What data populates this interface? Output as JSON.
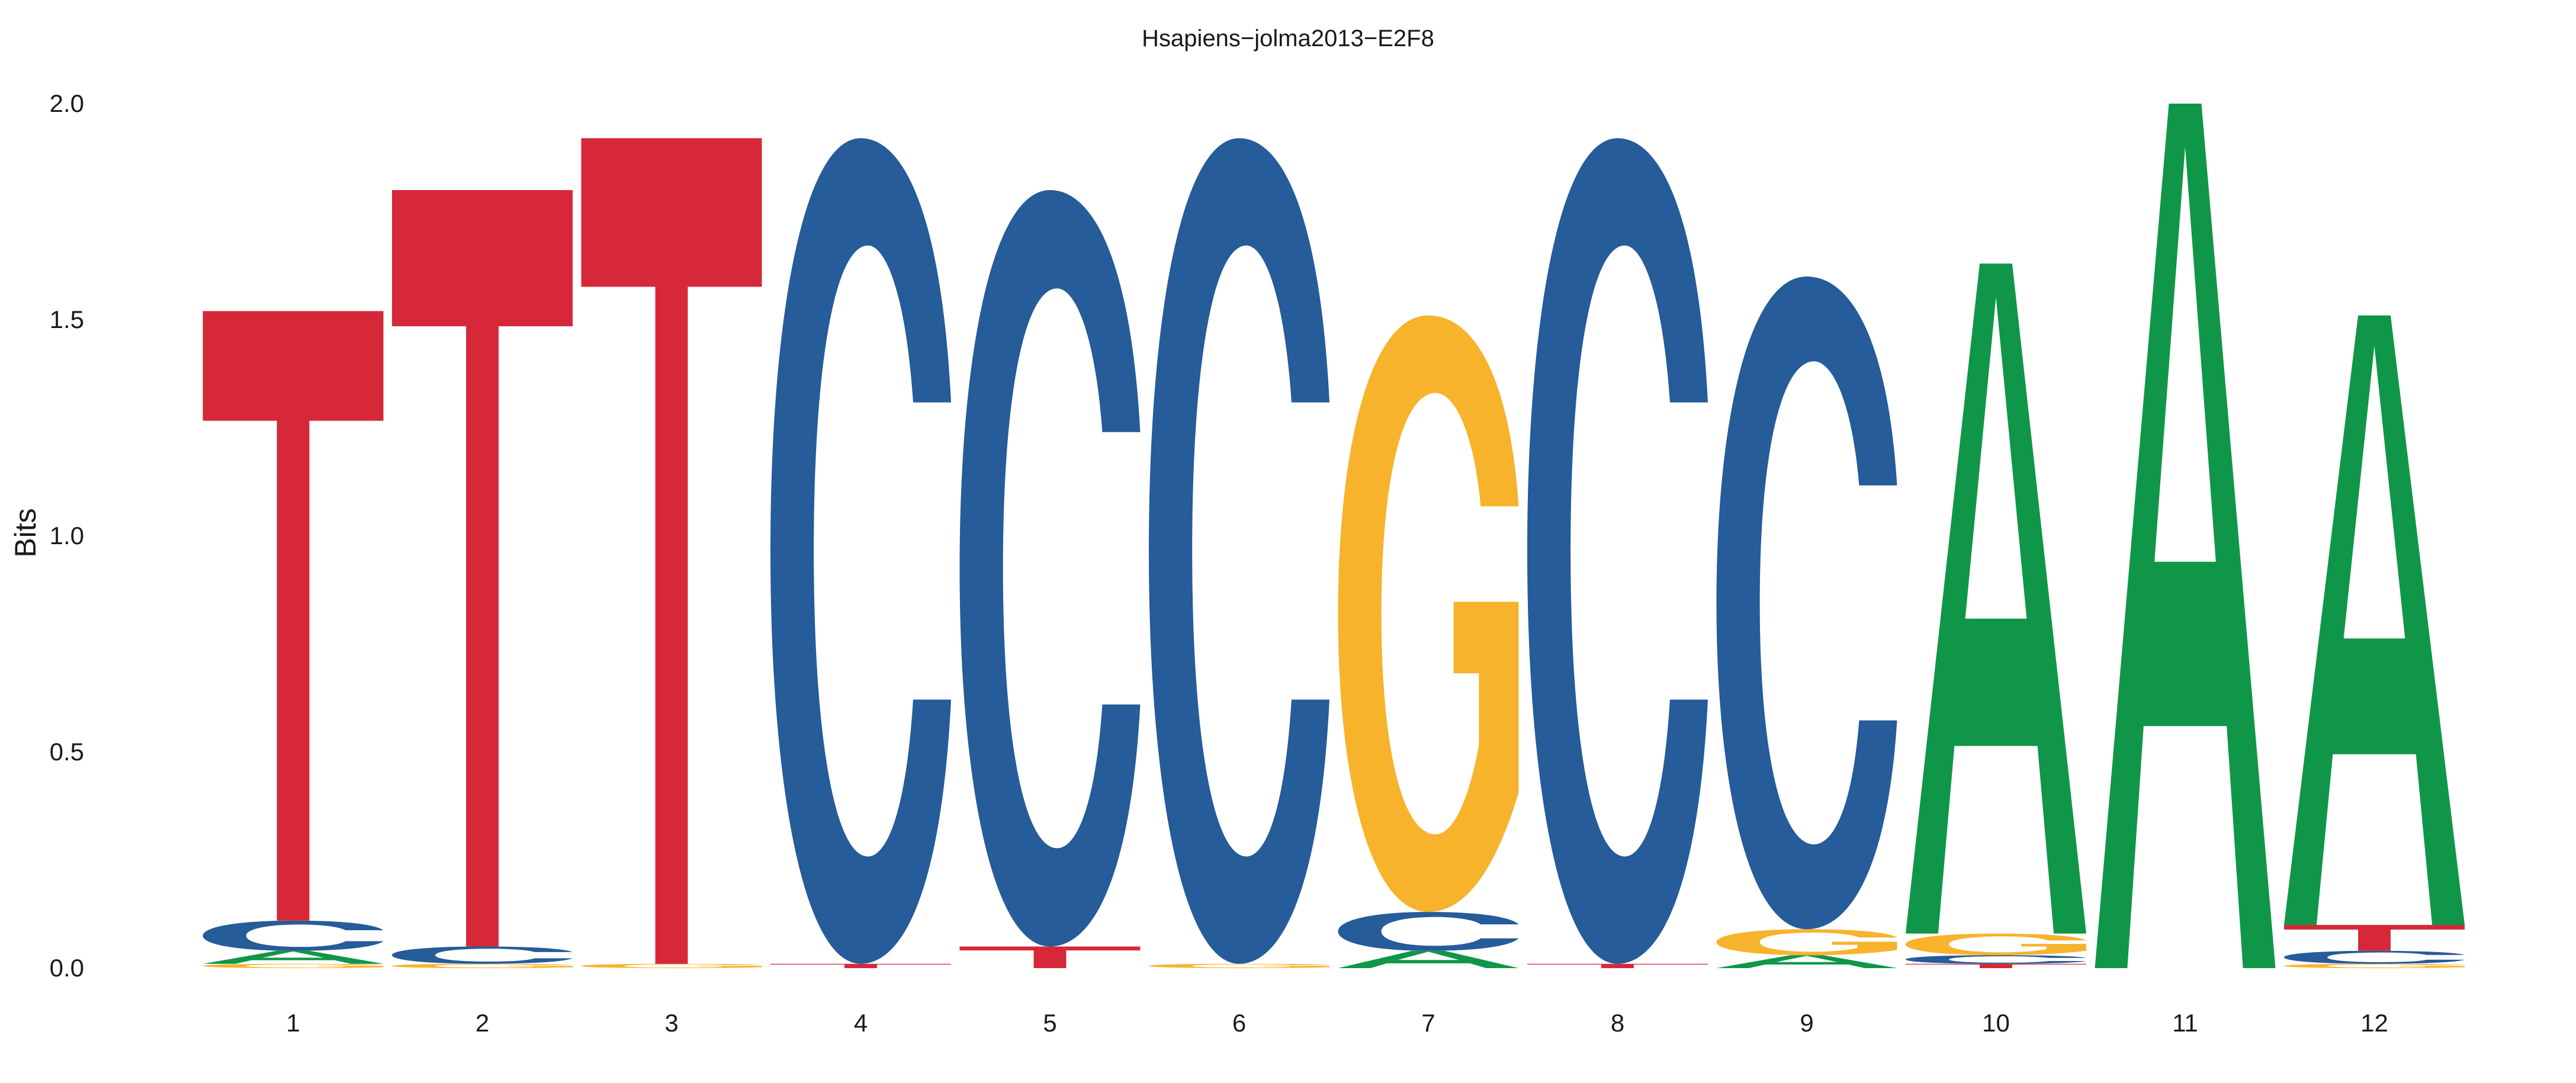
{
  "chart_data": {
    "type": "sequence-logo",
    "title": "Hsapiens−jolma2013−E2F8",
    "ylabel": "Bits",
    "xlabel": "",
    "ylim": [
      0,
      2
    ],
    "yticks": [
      {
        "value": 0.0,
        "label": "0.0"
      },
      {
        "value": 0.5,
        "label": "0.5"
      },
      {
        "value": 1.0,
        "label": "1.0"
      },
      {
        "value": 1.5,
        "label": "1.5"
      },
      {
        "value": 2.0,
        "label": "2.0"
      }
    ],
    "colors": {
      "A": "#109648",
      "C": "#255C99",
      "G": "#F7B32B",
      "T": "#D62839"
    },
    "grid": false,
    "positions": [
      {
        "label": "1",
        "stack": [
          {
            "base": "G",
            "bits": 0.01
          },
          {
            "base": "A",
            "bits": 0.03
          },
          {
            "base": "C",
            "bits": 0.07
          },
          {
            "base": "T",
            "bits": 1.41
          }
        ]
      },
      {
        "label": "2",
        "stack": [
          {
            "base": "G",
            "bits": 0.01
          },
          {
            "base": "C",
            "bits": 0.04
          },
          {
            "base": "T",
            "bits": 1.75
          }
        ]
      },
      {
        "label": "3",
        "stack": [
          {
            "base": "G",
            "bits": 0.01
          },
          {
            "base": "T",
            "bits": 1.91
          }
        ]
      },
      {
        "label": "4",
        "stack": [
          {
            "base": "T",
            "bits": 0.01
          },
          {
            "base": "C",
            "bits": 1.91
          }
        ]
      },
      {
        "label": "5",
        "stack": [
          {
            "base": "T",
            "bits": 0.05
          },
          {
            "base": "C",
            "bits": 1.75
          }
        ]
      },
      {
        "label": "6",
        "stack": [
          {
            "base": "G",
            "bits": 0.01
          },
          {
            "base": "C",
            "bits": 1.91
          }
        ]
      },
      {
        "label": "7",
        "stack": [
          {
            "base": "A",
            "bits": 0.04
          },
          {
            "base": "C",
            "bits": 0.09
          },
          {
            "base": "G",
            "bits": 1.38
          }
        ]
      },
      {
        "label": "8",
        "stack": [
          {
            "base": "T",
            "bits": 0.01
          },
          {
            "base": "C",
            "bits": 1.91
          }
        ]
      },
      {
        "label": "9",
        "stack": [
          {
            "base": "A",
            "bits": 0.03
          },
          {
            "base": "G",
            "bits": 0.06
          },
          {
            "base": "C",
            "bits": 1.51
          }
        ]
      },
      {
        "label": "10",
        "stack": [
          {
            "base": "T",
            "bits": 0.01
          },
          {
            "base": "C",
            "bits": 0.02
          },
          {
            "base": "G",
            "bits": 0.05
          },
          {
            "base": "A",
            "bits": 1.55
          }
        ]
      },
      {
        "label": "11",
        "stack": [
          {
            "base": "A",
            "bits": 2.0
          }
        ]
      },
      {
        "label": "12",
        "stack": [
          {
            "base": "G",
            "bits": 0.01
          },
          {
            "base": "C",
            "bits": 0.03
          },
          {
            "base": "T",
            "bits": 0.06
          },
          {
            "base": "A",
            "bits": 1.41
          }
        ]
      }
    ]
  }
}
